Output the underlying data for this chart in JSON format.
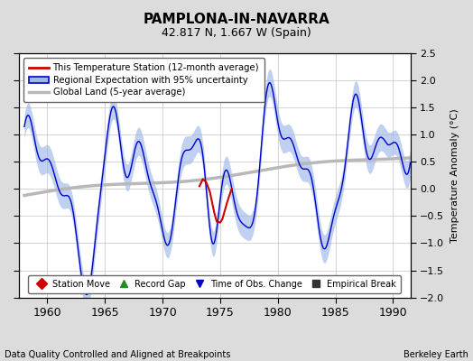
{
  "title": "PAMPLONA-IN-NAVARRA",
  "subtitle": "42.817 N, 1.667 W (Spain)",
  "bottom_left": "Data Quality Controlled and Aligned at Breakpoints",
  "bottom_right": "Berkeley Earth",
  "ylabel": "Temperature Anomaly (°C)",
  "xlim": [
    1957.5,
    1991.5
  ],
  "ylim": [
    -2.0,
    2.5
  ],
  "yticks": [
    -2.0,
    -1.5,
    -1.0,
    -0.5,
    0.0,
    0.5,
    1.0,
    1.5,
    2.0,
    2.5
  ],
  "xticks": [
    1960,
    1965,
    1970,
    1975,
    1980,
    1985,
    1990
  ],
  "bg_color": "#dcdcdc",
  "plot_bg_color": "#ffffff",
  "uncertainty_color": "#9db8e8",
  "regional_color": "#0000cc",
  "station_color": "#cc0000",
  "global_color": "#b8b8b8",
  "legend_line1": "This Temperature Station (12-month average)",
  "legend_line2": "Regional Expectation with 95% uncertainty",
  "legend_line3": "Global Land (5-year average)",
  "marker_labels": [
    "Station Move",
    "Record Gap",
    "Time of Obs. Change",
    "Empirical Break"
  ],
  "marker_colors": [
    "#cc0000",
    "#228B22",
    "#0000cc",
    "#333333"
  ],
  "marker_shapes": [
    "D",
    "^",
    "v",
    "s"
  ]
}
